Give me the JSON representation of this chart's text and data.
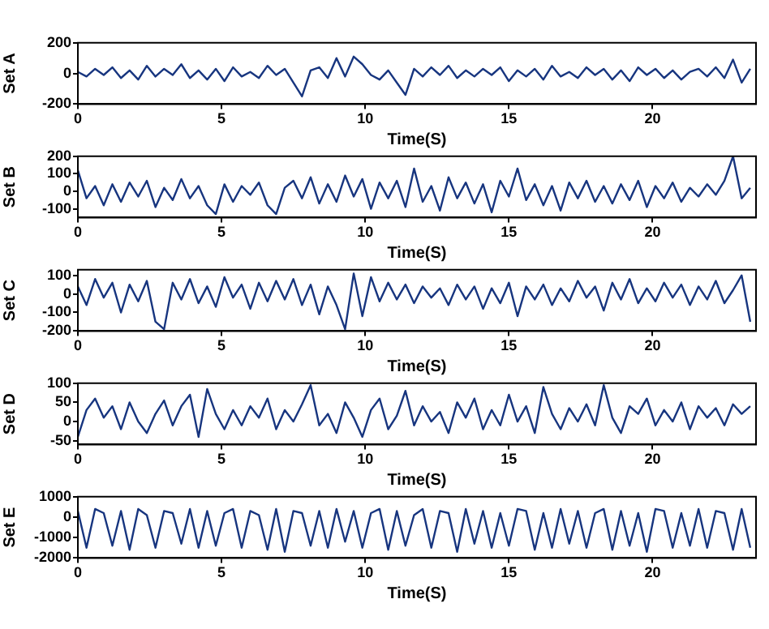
{
  "chart_data": [
    {
      "type": "line",
      "xlabel": "Time(S)",
      "ylabel": "Set A",
      "xlim": [
        0,
        23.6
      ],
      "xticks": [
        0,
        5,
        10,
        15,
        20
      ],
      "ylim": [
        -200,
        200
      ],
      "yticks": [
        -200,
        0,
        200
      ],
      "grid": false,
      "legend": false,
      "marker": "none",
      "line_style": "solid",
      "x": [
        0,
        0.3,
        0.6,
        0.9,
        1.2,
        1.5,
        1.8,
        2.1,
        2.4,
        2.7,
        3,
        3.3,
        3.6,
        3.9,
        4.2,
        4.5,
        4.8,
        5.1,
        5.4,
        5.7,
        6,
        6.3,
        6.6,
        6.9,
        7.2,
        7.5,
        7.8,
        8.1,
        8.4,
        8.7,
        9,
        9.3,
        9.6,
        9.9,
        10.2,
        10.5,
        10.8,
        11.1,
        11.4,
        11.7,
        12,
        12.3,
        12.6,
        12.9,
        13.2,
        13.5,
        13.8,
        14.1,
        14.4,
        14.7,
        15,
        15.3,
        15.6,
        15.9,
        16.2,
        16.5,
        16.8,
        17.1,
        17.4,
        17.7,
        18,
        18.3,
        18.6,
        18.9,
        19.2,
        19.5,
        19.8,
        20.1,
        20.4,
        20.7,
        21,
        21.3,
        21.6,
        21.9,
        22.2,
        22.5,
        22.8,
        23.1,
        23.4
      ],
      "series": [
        {
          "color": "#17357f",
          "values": [
            10,
            -20,
            30,
            -10,
            40,
            -30,
            20,
            -40,
            50,
            -20,
            30,
            -10,
            60,
            -30,
            20,
            -40,
            30,
            -50,
            40,
            -20,
            10,
            -30,
            50,
            -10,
            30,
            -60,
            -150,
            20,
            40,
            -30,
            100,
            -20,
            110,
            60,
            -10,
            -40,
            20,
            -60,
            -140,
            30,
            -20,
            40,
            -10,
            50,
            -30,
            20,
            -20,
            30,
            -10,
            40,
            -50,
            20,
            -20,
            30,
            -40,
            50,
            -20,
            10,
            -30,
            40,
            -10,
            30,
            -40,
            20,
            -50,
            40,
            -10,
            30,
            -30,
            20,
            -40,
            10,
            30,
            -20,
            40,
            -30,
            90,
            -60,
            30
          ]
        }
      ]
    },
    {
      "type": "line",
      "xlabel": "Time(S)",
      "ylabel": "Set B",
      "xlim": [
        0,
        23.6
      ],
      "xticks": [
        0,
        5,
        10,
        15,
        20
      ],
      "ylim": [
        -150,
        200
      ],
      "yticks": [
        -100,
        0,
        100,
        200
      ],
      "grid": false,
      "legend": false,
      "marker": "none",
      "line_style": "solid",
      "x": [
        0,
        0.3,
        0.6,
        0.9,
        1.2,
        1.5,
        1.8,
        2.1,
        2.4,
        2.7,
        3,
        3.3,
        3.6,
        3.9,
        4.2,
        4.5,
        4.8,
        5.1,
        5.4,
        5.7,
        6,
        6.3,
        6.6,
        6.9,
        7.2,
        7.5,
        7.8,
        8.1,
        8.4,
        8.7,
        9,
        9.3,
        9.6,
        9.9,
        10.2,
        10.5,
        10.8,
        11.1,
        11.4,
        11.7,
        12,
        12.3,
        12.6,
        12.9,
        13.2,
        13.5,
        13.8,
        14.1,
        14.4,
        14.7,
        15,
        15.3,
        15.6,
        15.9,
        16.2,
        16.5,
        16.8,
        17.1,
        17.4,
        17.7,
        18,
        18.3,
        18.6,
        18.9,
        19.2,
        19.5,
        19.8,
        20.1,
        20.4,
        20.7,
        21,
        21.3,
        21.6,
        21.9,
        22.2,
        22.5,
        22.8,
        23.1,
        23.4
      ],
      "series": [
        {
          "color": "#17357f",
          "values": [
            120,
            -40,
            30,
            -80,
            40,
            -60,
            50,
            -30,
            60,
            -90,
            20,
            -50,
            70,
            -40,
            30,
            -80,
            -130,
            40,
            -60,
            30,
            -20,
            50,
            -80,
            -130,
            20,
            60,
            -40,
            80,
            -70,
            40,
            -60,
            90,
            -30,
            70,
            -100,
            50,
            -40,
            60,
            -90,
            130,
            -60,
            30,
            -110,
            80,
            -40,
            50,
            -70,
            40,
            -120,
            60,
            -30,
            130,
            -50,
            40,
            -80,
            30,
            -110,
            50,
            -40,
            60,
            -60,
            30,
            -70,
            40,
            -50,
            60,
            -90,
            30,
            -40,
            50,
            -60,
            20,
            -30,
            40,
            -20,
            60,
            200,
            -40,
            20
          ]
        }
      ]
    },
    {
      "type": "line",
      "xlabel": "Time(S)",
      "ylabel": "Set C",
      "xlim": [
        0,
        23.6
      ],
      "xticks": [
        0,
        5,
        10,
        15,
        20
      ],
      "ylim": [
        -200,
        130
      ],
      "yticks": [
        -200,
        -100,
        0,
        100
      ],
      "grid": false,
      "legend": false,
      "marker": "none",
      "line_style": "solid",
      "x": [
        0,
        0.3,
        0.6,
        0.9,
        1.2,
        1.5,
        1.8,
        2.1,
        2.4,
        2.7,
        3,
        3.3,
        3.6,
        3.9,
        4.2,
        4.5,
        4.8,
        5.1,
        5.4,
        5.7,
        6,
        6.3,
        6.6,
        6.9,
        7.2,
        7.5,
        7.8,
        8.1,
        8.4,
        8.7,
        9,
        9.3,
        9.6,
        9.9,
        10.2,
        10.5,
        10.8,
        11.1,
        11.4,
        11.7,
        12,
        12.3,
        12.6,
        12.9,
        13.2,
        13.5,
        13.8,
        14.1,
        14.4,
        14.7,
        15,
        15.3,
        15.6,
        15.9,
        16.2,
        16.5,
        16.8,
        17.1,
        17.4,
        17.7,
        18,
        18.3,
        18.6,
        18.9,
        19.2,
        19.5,
        19.8,
        20.1,
        20.4,
        20.7,
        21,
        21.3,
        21.6,
        21.9,
        22.2,
        22.5,
        22.8,
        23.1,
        23.4
      ],
      "series": [
        {
          "color": "#17357f",
          "values": [
            40,
            -60,
            80,
            -20,
            60,
            -100,
            50,
            -40,
            70,
            -150,
            -190,
            60,
            -30,
            80,
            -50,
            40,
            -70,
            90,
            -20,
            50,
            -80,
            60,
            -40,
            70,
            -30,
            80,
            -60,
            50,
            -110,
            40,
            -60,
            -190,
            110,
            -120,
            90,
            -40,
            60,
            -30,
            50,
            -50,
            40,
            -20,
            30,
            -60,
            50,
            -30,
            40,
            -80,
            30,
            -50,
            60,
            -120,
            40,
            -30,
            50,
            -60,
            30,
            -40,
            70,
            -20,
            40,
            -90,
            60,
            -30,
            80,
            -50,
            30,
            -40,
            60,
            -20,
            50,
            -60,
            40,
            -30,
            70,
            -50,
            20,
            100,
            -150
          ]
        }
      ]
    },
    {
      "type": "line",
      "xlabel": "Time(S)",
      "ylabel": "Set D",
      "xlim": [
        0,
        23.6
      ],
      "xticks": [
        0,
        5,
        10,
        15,
        20
      ],
      "ylim": [
        -60,
        100
      ],
      "yticks": [
        -50,
        0,
        50,
        100
      ],
      "grid": false,
      "legend": false,
      "marker": "none",
      "line_style": "solid",
      "x": [
        0,
        0.3,
        0.6,
        0.9,
        1.2,
        1.5,
        1.8,
        2.1,
        2.4,
        2.7,
        3,
        3.3,
        3.6,
        3.9,
        4.2,
        4.5,
        4.8,
        5.1,
        5.4,
        5.7,
        6,
        6.3,
        6.6,
        6.9,
        7.2,
        7.5,
        7.8,
        8.1,
        8.4,
        8.7,
        9,
        9.3,
        9.6,
        9.9,
        10.2,
        10.5,
        10.8,
        11.1,
        11.4,
        11.7,
        12,
        12.3,
        12.6,
        12.9,
        13.2,
        13.5,
        13.8,
        14.1,
        14.4,
        14.7,
        15,
        15.3,
        15.6,
        15.9,
        16.2,
        16.5,
        16.8,
        17.1,
        17.4,
        17.7,
        18,
        18.3,
        18.6,
        18.9,
        19.2,
        19.5,
        19.8,
        20.1,
        20.4,
        20.7,
        21,
        21.3,
        21.6,
        21.9,
        22.2,
        22.5,
        22.8,
        23.1,
        23.4
      ],
      "series": [
        {
          "color": "#17357f",
          "values": [
            -40,
            30,
            60,
            10,
            40,
            -20,
            50,
            0,
            -30,
            20,
            55,
            -10,
            40,
            70,
            -40,
            85,
            20,
            -20,
            30,
            -10,
            40,
            10,
            60,
            -20,
            30,
            0,
            45,
            95,
            -10,
            20,
            -30,
            50,
            10,
            -40,
            30,
            60,
            -20,
            15,
            80,
            -10,
            40,
            0,
            25,
            -30,
            50,
            10,
            60,
            -20,
            30,
            -10,
            70,
            0,
            40,
            -30,
            90,
            20,
            -20,
            35,
            0,
            45,
            -10,
            95,
            10,
            -30,
            40,
            20,
            60,
            -10,
            30,
            0,
            50,
            -20,
            40,
            10,
            35,
            -10,
            45,
            20,
            40
          ]
        }
      ]
    },
    {
      "type": "line",
      "xlabel": "Time(S)",
      "ylabel": "Set E",
      "xlim": [
        0,
        23.6
      ],
      "xticks": [
        0,
        5,
        10,
        15,
        20
      ],
      "ylim": [
        -2000,
        1000
      ],
      "yticks": [
        -2000,
        -1000,
        0,
        1000
      ],
      "grid": false,
      "legend": false,
      "marker": "none",
      "line_style": "solid",
      "x": [
        0,
        0.3,
        0.6,
        0.9,
        1.2,
        1.5,
        1.8,
        2.1,
        2.4,
        2.7,
        3,
        3.3,
        3.6,
        3.9,
        4.2,
        4.5,
        4.8,
        5.1,
        5.4,
        5.7,
        6,
        6.3,
        6.6,
        6.9,
        7.2,
        7.5,
        7.8,
        8.1,
        8.4,
        8.7,
        9,
        9.3,
        9.6,
        9.9,
        10.2,
        10.5,
        10.8,
        11.1,
        11.4,
        11.7,
        12,
        12.3,
        12.6,
        12.9,
        13.2,
        13.5,
        13.8,
        14.1,
        14.4,
        14.7,
        15,
        15.3,
        15.6,
        15.9,
        16.2,
        16.5,
        16.8,
        17.1,
        17.4,
        17.7,
        18,
        18.3,
        18.6,
        18.9,
        19.2,
        19.5,
        19.8,
        20.1,
        20.4,
        20.7,
        21,
        21.3,
        21.6,
        21.9,
        22.2,
        22.5,
        22.8,
        23.1,
        23.4
      ],
      "series": [
        {
          "color": "#17357f",
          "values": [
            300,
            -1500,
            400,
            200,
            -1400,
            300,
            -1600,
            400,
            100,
            -1500,
            300,
            200,
            -1300,
            400,
            -1500,
            300,
            -1400,
            200,
            400,
            -1500,
            300,
            100,
            -1600,
            400,
            -1700,
            300,
            200,
            -1400,
            300,
            -1500,
            400,
            -1200,
            300,
            -1500,
            200,
            400,
            -1600,
            300,
            -1400,
            100,
            400,
            -1500,
            300,
            200,
            -1700,
            400,
            -1300,
            300,
            -1500,
            200,
            -1400,
            400,
            300,
            -1600,
            200,
            -1500,
            400,
            -1300,
            300,
            -1500,
            200,
            400,
            -1600,
            300,
            -1400,
            200,
            -1700,
            400,
            300,
            -1500,
            200,
            -1400,
            400,
            -1500,
            300,
            200,
            -1600,
            400,
            -1500
          ]
        }
      ]
    }
  ]
}
